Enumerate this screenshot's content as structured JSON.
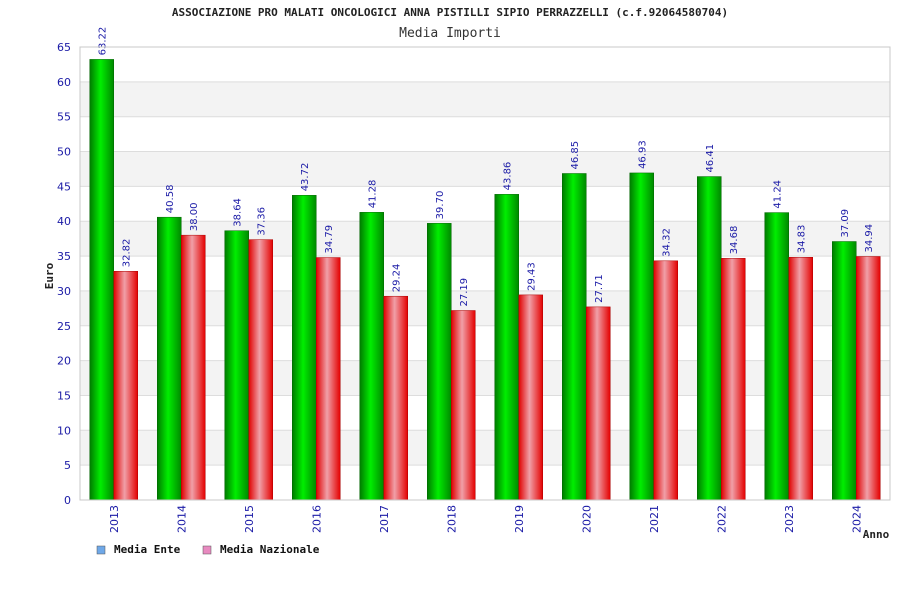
{
  "chart_data": {
    "type": "bar",
    "title": "ASSOCIAZIONE PRO MALATI ONCOLOGICI ANNA PISTILLI SIPIO PERRAZZELLI (c.f.92064580704)",
    "subtitle": "Media Importi",
    "xlabel": "Anno",
    "ylabel": "Euro",
    "ylim": [
      0,
      65
    ],
    "yticks": [
      "0",
      "5",
      "10",
      "15",
      "20",
      "25",
      "30",
      "35",
      "40",
      "45",
      "50",
      "55",
      "60",
      "65"
    ],
    "categories": [
      "2013",
      "2014",
      "2015",
      "2016",
      "2017",
      "2018",
      "2019",
      "2020",
      "2021",
      "2022",
      "2023",
      "2024"
    ],
    "series": [
      {
        "name": "Media Ente",
        "color": "#00c000",
        "legend_color": "#6fa8e8",
        "values": [
          63.22,
          40.58,
          38.64,
          43.72,
          41.28,
          39.7,
          43.86,
          46.85,
          46.93,
          46.41,
          41.24,
          37.09
        ],
        "labels": [
          "63.22",
          "40.58",
          "38.64",
          "43.72",
          "41.28",
          "39.70",
          "43.86",
          "46.85",
          "46.93",
          "46.41",
          "41.24",
          "37.09"
        ]
      },
      {
        "name": "Media Nazionale",
        "color": "#ee0000",
        "legend_color": "#e88ac0",
        "values": [
          32.82,
          38.0,
          37.36,
          34.79,
          29.24,
          27.19,
          29.43,
          27.71,
          34.32,
          34.68,
          34.83,
          34.94
        ],
        "labels": [
          "32.82",
          "38.00",
          "37.36",
          "34.79",
          "29.24",
          "27.19",
          "29.43",
          "27.71",
          "34.32",
          "34.68",
          "34.83",
          "34.94"
        ]
      }
    ],
    "grid": true,
    "legend_position": "bottom-left"
  }
}
